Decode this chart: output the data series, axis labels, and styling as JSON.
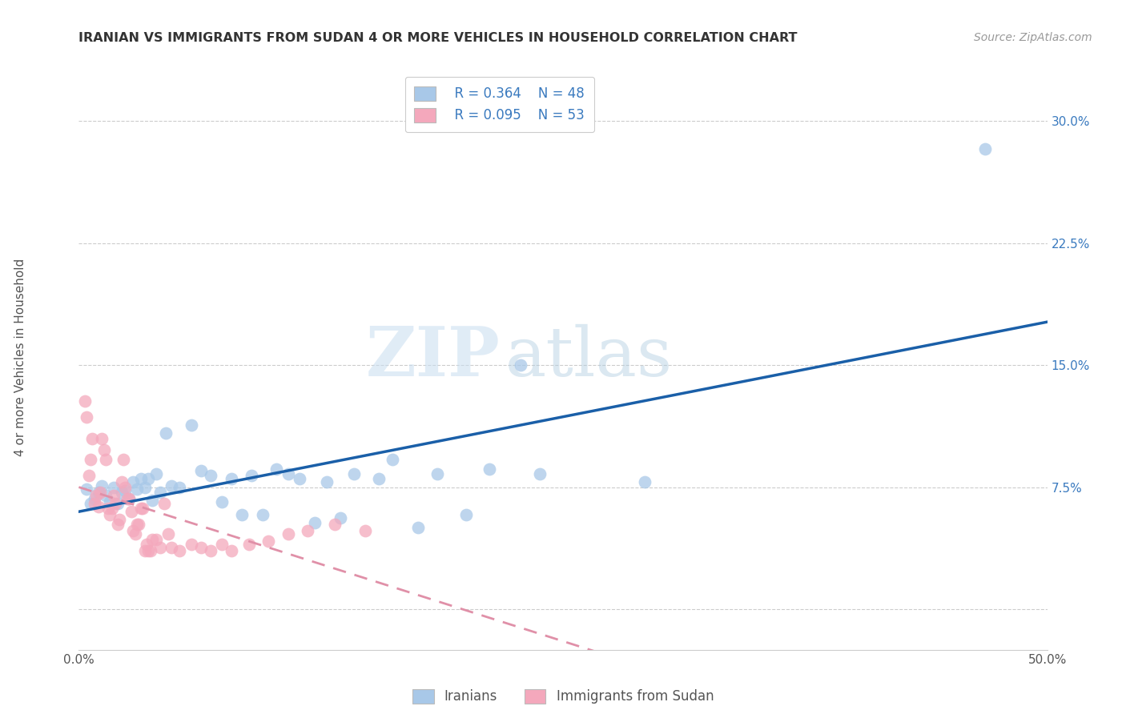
{
  "title": "IRANIAN VS IMMIGRANTS FROM SUDAN 4 OR MORE VEHICLES IN HOUSEHOLD CORRELATION CHART",
  "source": "Source: ZipAtlas.com",
  "ylabel": "4 or more Vehicles in Household",
  "xlim": [
    0.0,
    0.5
  ],
  "ylim": [
    -0.025,
    0.335
  ],
  "yticks": [
    0.0,
    0.075,
    0.15,
    0.225,
    0.3
  ],
  "xticks": [
    0.0,
    0.1,
    0.2,
    0.3,
    0.4,
    0.5
  ],
  "R_iranians": "R = 0.364",
  "N_iranians": "N = 48",
  "R_sudan": "R = 0.095",
  "N_sudan": "N = 53",
  "label_iranians": "Iranians",
  "label_sudan": "Immigrants from Sudan",
  "color_iranians": "#a8c8e8",
  "color_sudan": "#f4a8bc",
  "line_color_iranians": "#1a5fa8",
  "line_color_sudan": "#e090a8",
  "watermark_zip": "ZIP",
  "watermark_atlas": "atlas",
  "iranians_x": [
    0.004,
    0.006,
    0.008,
    0.01,
    0.012,
    0.014,
    0.016,
    0.018,
    0.02,
    0.022,
    0.024,
    0.026,
    0.028,
    0.03,
    0.032,
    0.034,
    0.036,
    0.038,
    0.04,
    0.042,
    0.045,
    0.048,
    0.052,
    0.058,
    0.063,
    0.068,
    0.074,
    0.079,
    0.084,
    0.089,
    0.095,
    0.102,
    0.108,
    0.114,
    0.122,
    0.128,
    0.135,
    0.142,
    0.155,
    0.162,
    0.175,
    0.185,
    0.2,
    0.212,
    0.228,
    0.238,
    0.292,
    0.468
  ],
  "iranians_y": [
    0.074,
    0.065,
    0.068,
    0.072,
    0.076,
    0.07,
    0.066,
    0.075,
    0.065,
    0.072,
    0.073,
    0.068,
    0.078,
    0.074,
    0.08,
    0.075,
    0.08,
    0.067,
    0.083,
    0.072,
    0.108,
    0.076,
    0.075,
    0.113,
    0.085,
    0.082,
    0.066,
    0.08,
    0.058,
    0.082,
    0.058,
    0.086,
    0.083,
    0.08,
    0.053,
    0.078,
    0.056,
    0.083,
    0.08,
    0.092,
    0.05,
    0.083,
    0.058,
    0.086,
    0.15,
    0.083,
    0.078,
    0.283
  ],
  "sudan_x": [
    0.003,
    0.004,
    0.005,
    0.006,
    0.007,
    0.008,
    0.009,
    0.01,
    0.011,
    0.012,
    0.013,
    0.014,
    0.015,
    0.016,
    0.017,
    0.018,
    0.019,
    0.02,
    0.021,
    0.022,
    0.023,
    0.024,
    0.025,
    0.026,
    0.027,
    0.028,
    0.029,
    0.03,
    0.031,
    0.032,
    0.033,
    0.034,
    0.035,
    0.036,
    0.037,
    0.038,
    0.04,
    0.042,
    0.044,
    0.046,
    0.048,
    0.052,
    0.058,
    0.063,
    0.068,
    0.074,
    0.079,
    0.088,
    0.098,
    0.108,
    0.118,
    0.132,
    0.148
  ],
  "sudan_y": [
    0.128,
    0.118,
    0.082,
    0.092,
    0.105,
    0.065,
    0.07,
    0.063,
    0.072,
    0.105,
    0.098,
    0.092,
    0.062,
    0.058,
    0.062,
    0.07,
    0.065,
    0.052,
    0.055,
    0.078,
    0.092,
    0.075,
    0.068,
    0.068,
    0.06,
    0.048,
    0.046,
    0.052,
    0.052,
    0.062,
    0.062,
    0.036,
    0.04,
    0.036,
    0.036,
    0.043,
    0.043,
    0.038,
    0.065,
    0.046,
    0.038,
    0.036,
    0.04,
    0.038,
    0.036,
    0.04,
    0.036,
    0.04,
    0.042,
    0.046,
    0.048,
    0.052,
    0.048
  ]
}
